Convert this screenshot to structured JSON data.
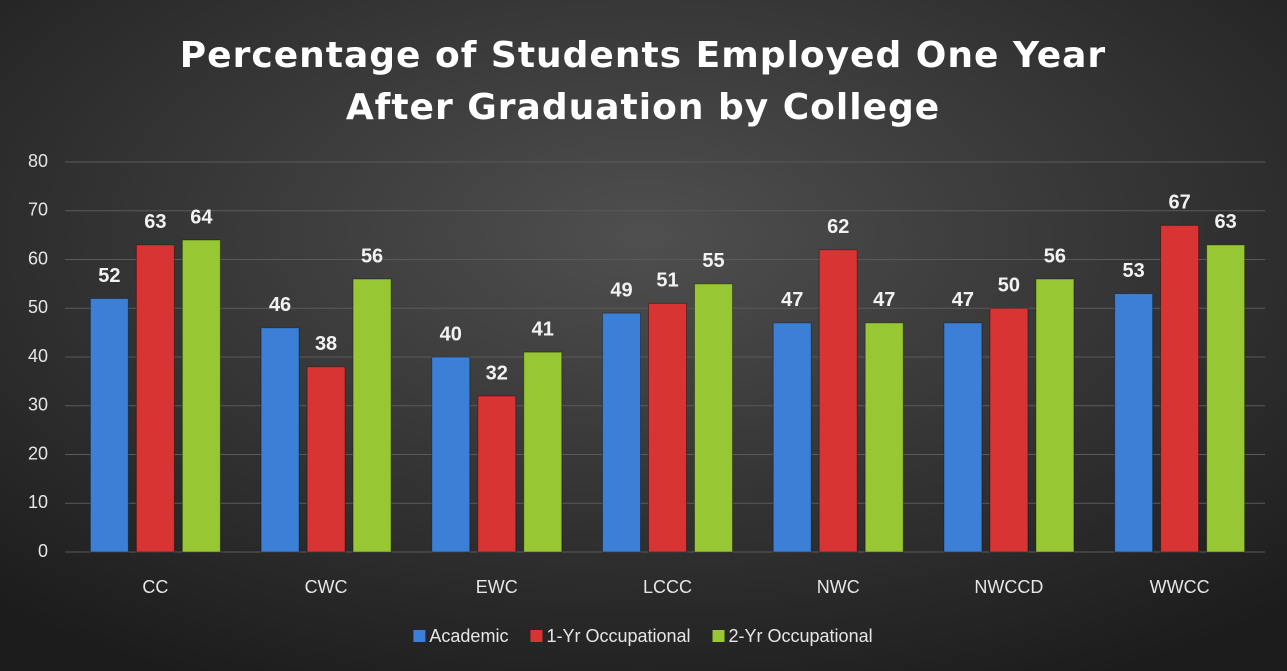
{
  "chart_data": {
    "type": "bar",
    "title": "Percentage of Students Employed One Year After Graduation by College",
    "categories": [
      "CC",
      "CWC",
      "EWC",
      "LCCC",
      "NWC",
      "NWCCD",
      "WWCC"
    ],
    "series": [
      {
        "name": "Academic",
        "color": "#3b7fd6",
        "values": [
          52,
          46,
          40,
          49,
          47,
          47,
          53
        ]
      },
      {
        "name": "1-Yr Occupational",
        "color": "#d83434",
        "values": [
          63,
          38,
          32,
          51,
          62,
          50,
          67
        ]
      },
      {
        "name": "2-Yr Occupational",
        "color": "#98c734",
        "values": [
          64,
          56,
          41,
          55,
          47,
          56,
          63
        ]
      }
    ],
    "ylim": [
      0,
      80
    ],
    "yticks": [
      0,
      10,
      20,
      30,
      40,
      50,
      60,
      70,
      80
    ],
    "grid": true,
    "legend": "bottom"
  }
}
